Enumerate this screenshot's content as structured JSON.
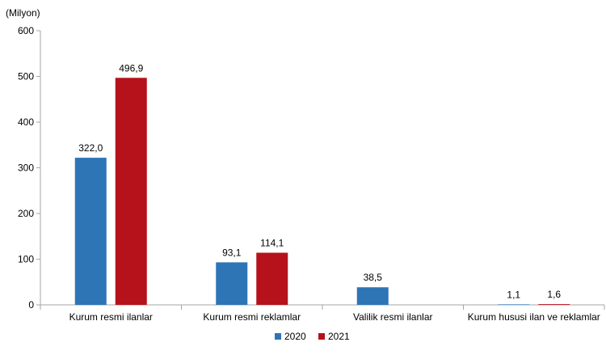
{
  "chart_data": {
    "type": "bar",
    "title": "",
    "unit_label": "(Milyon)",
    "xlabel": "",
    "ylabel": "",
    "ylim": [
      0,
      600
    ],
    "yticks": [
      0,
      100,
      200,
      300,
      400,
      500,
      600
    ],
    "grid": false,
    "legend_position": "bottom-center",
    "categories": [
      "Kurum resmi ilanlar",
      "Kurum resmi reklamlar",
      "Valilik resmi ilanlar",
      "Kurum hususi ilan ve reklamlar"
    ],
    "series": [
      {
        "name": "2020",
        "color": "#2e75b6",
        "values": [
          322.0,
          93.1,
          38.5,
          1.1
        ],
        "labels": [
          "322,0",
          "93,1",
          "38,5",
          "1,1"
        ]
      },
      {
        "name": "2021",
        "color": "#b5121b",
        "values": [
          496.9,
          114.1,
          0,
          1.6
        ],
        "labels": [
          "496,9",
          "114,1",
          "",
          "1,6"
        ]
      }
    ]
  }
}
